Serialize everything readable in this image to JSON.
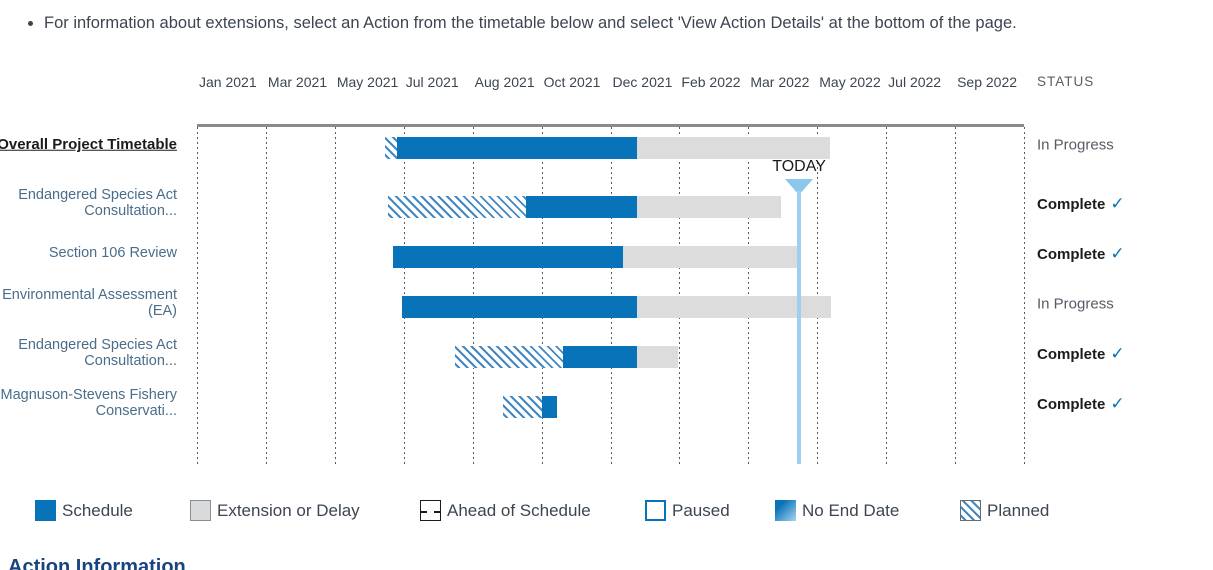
{
  "instruction": {
    "text": "For information about extensions, select an Action from the timetable below and select 'View Action Details' at the bottom of the page."
  },
  "timeline": {
    "status_header": "STATUS",
    "today_label": "TODAY"
  },
  "chart_data": {
    "type": "gantt",
    "x_axis": {
      "ticks": [
        "Jan 2021",
        "Mar 2021",
        "May 2021",
        "Jul 2021",
        "Aug 2021",
        "Oct 2021",
        "Dec 2021",
        "Feb 2022",
        "Mar 2022",
        "May 2022",
        "Jul 2022",
        "Sep 2022"
      ],
      "gridlines": true,
      "range_note": "timeline spans Jan 2021 to Oct 2022"
    },
    "today_pct": 72.8,
    "rows": [
      {
        "label": "Overall Project Timetable",
        "label_lines": [
          "Overall Project Timetable"
        ],
        "emphasis": true,
        "status": "In Progress",
        "complete": false,
        "segments": [
          {
            "kind": "planned",
            "start": 22.7,
            "end": 24.2
          },
          {
            "kind": "schedule",
            "start": 24.2,
            "end": 53.2
          },
          {
            "kind": "extension",
            "start": 53.2,
            "end": 76.5
          }
        ]
      },
      {
        "label": "Endangered Species Act Consultation...",
        "label_lines": [
          "Endangered Species Act",
          "Consultation..."
        ],
        "emphasis": false,
        "status": "Complete",
        "complete": true,
        "segments": [
          {
            "kind": "planned",
            "start": 23.1,
            "end": 39.8
          },
          {
            "kind": "schedule",
            "start": 39.8,
            "end": 53.2
          },
          {
            "kind": "extension",
            "start": 53.2,
            "end": 70.6
          }
        ]
      },
      {
        "label": "Section 106 Review",
        "label_lines": [
          "Section 106 Review"
        ],
        "emphasis": false,
        "status": "Complete",
        "complete": true,
        "segments": [
          {
            "kind": "schedule",
            "start": 23.7,
            "end": 51.5
          },
          {
            "kind": "extension",
            "start": 51.5,
            "end": 72.9
          }
        ]
      },
      {
        "label": "Environmental Assessment (EA)",
        "label_lines": [
          "Environmental Assessment",
          "(EA)"
        ],
        "emphasis": false,
        "status": "In Progress",
        "complete": false,
        "segments": [
          {
            "kind": "schedule",
            "start": 24.8,
            "end": 53.2
          },
          {
            "kind": "extension",
            "start": 53.2,
            "end": 76.7
          }
        ]
      },
      {
        "label": "Endangered Species Act Consultation...",
        "label_lines": [
          "Endangered Species Act",
          "Consultation..."
        ],
        "emphasis": false,
        "status": "Complete",
        "complete": true,
        "segments": [
          {
            "kind": "planned",
            "start": 31.2,
            "end": 44.3
          },
          {
            "kind": "schedule",
            "start": 44.3,
            "end": 53.2
          },
          {
            "kind": "extension",
            "start": 53.2,
            "end": 58.2
          }
        ]
      },
      {
        "label": "Magnuson-Stevens Fishery Conservati...",
        "label_lines": [
          "Magnuson-Stevens Fishery",
          "Conservati..."
        ],
        "emphasis": false,
        "status": "Complete",
        "complete": true,
        "segments": [
          {
            "kind": "planned",
            "start": 37.0,
            "end": 41.7
          },
          {
            "kind": "schedule",
            "start": 41.7,
            "end": 43.5
          }
        ]
      }
    ]
  },
  "legend": {
    "items": [
      {
        "label": "Schedule",
        "swatch": "schedule"
      },
      {
        "label": "Extension or Delay",
        "swatch": "extension"
      },
      {
        "label": "Ahead of Schedule",
        "swatch": "ahead"
      },
      {
        "label": "Paused",
        "swatch": "paused"
      },
      {
        "label": "No End Date",
        "swatch": "noenddate"
      },
      {
        "label": "Planned",
        "swatch": "planned"
      }
    ]
  },
  "footer": {
    "heading": "Action Information"
  },
  "status_values": {
    "check_glyph": "✓"
  },
  "colors": {
    "schedule_blue": "#0873b9",
    "extension_gray": "#dcdcdc",
    "today_line_blue": "#9fceee",
    "row_label_blue": "#4a6d8a",
    "heading_blue": "#1a4480",
    "text_dark": "#3d4551"
  }
}
